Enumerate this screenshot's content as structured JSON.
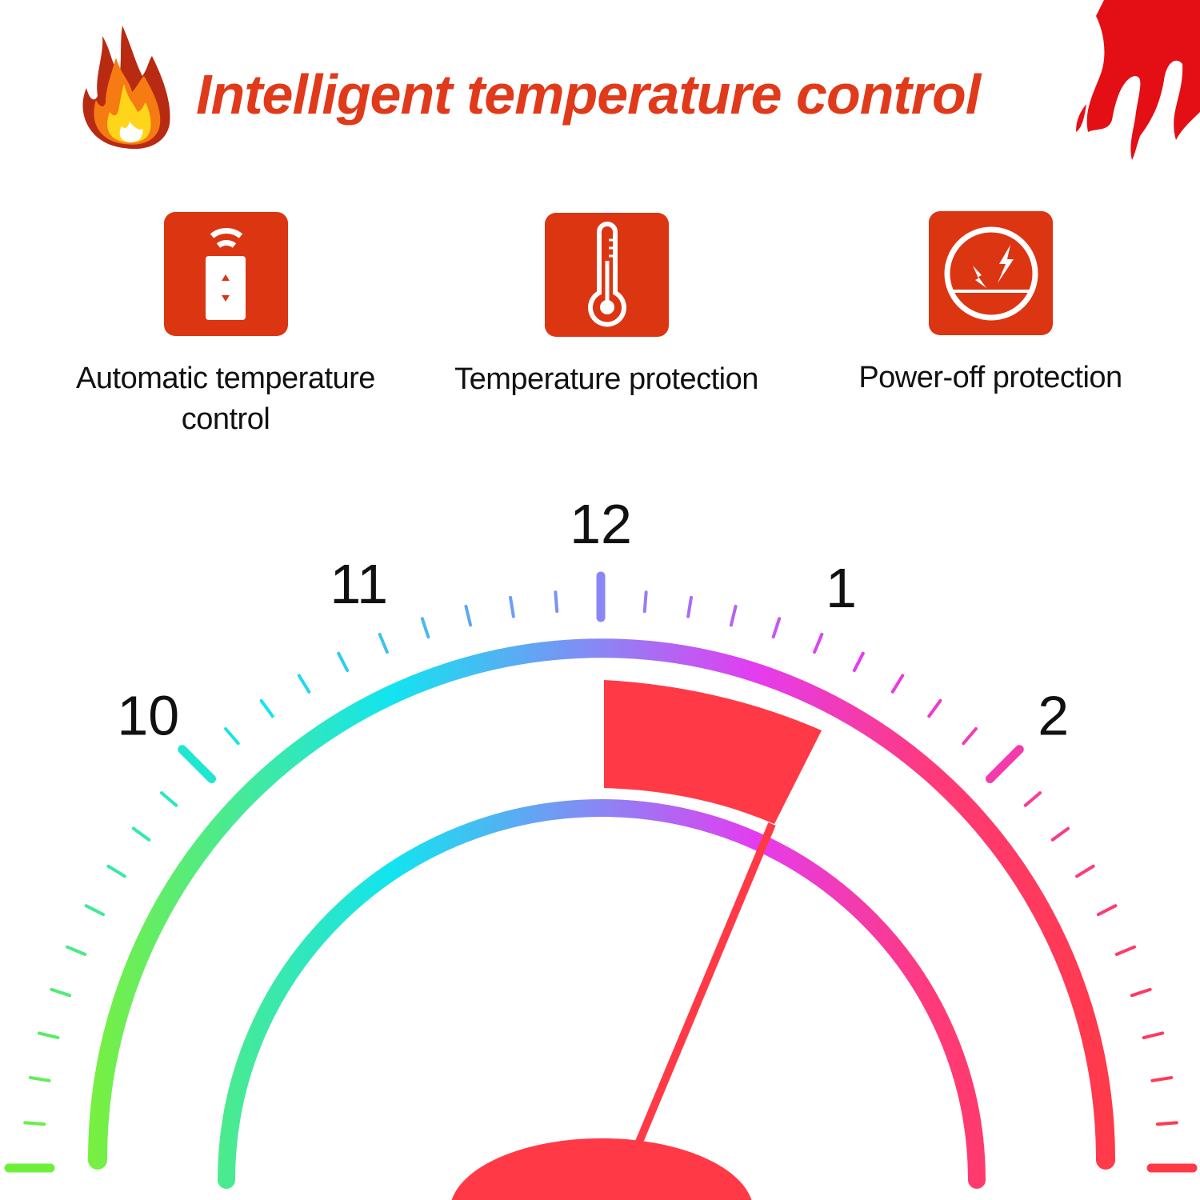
{
  "header": {
    "title": "Intelligent temperature control",
    "left_icon": "fire-icon",
    "right_icon": "red-flame-icon"
  },
  "features": [
    {
      "icon": "remote-control-icon",
      "label": "Automatic temperature control"
    },
    {
      "icon": "thermometer-icon",
      "label": "Temperature protection"
    },
    {
      "icon": "power-off-lightning-icon",
      "label": "Power-off protection"
    }
  ],
  "gauge": {
    "labels": [
      "10",
      "11",
      "12",
      "1",
      "2"
    ],
    "pointer_value": "just past 1",
    "colors": {
      "green": "#6ef03a",
      "cyan": "#12e4f0",
      "blue": "#8a86f5",
      "magenta": "#e43cf0",
      "pink": "#ff3a7a",
      "red": "#ff3a46"
    },
    "pointer_color": "#ff3a46"
  },
  "accent": "#dc3512"
}
